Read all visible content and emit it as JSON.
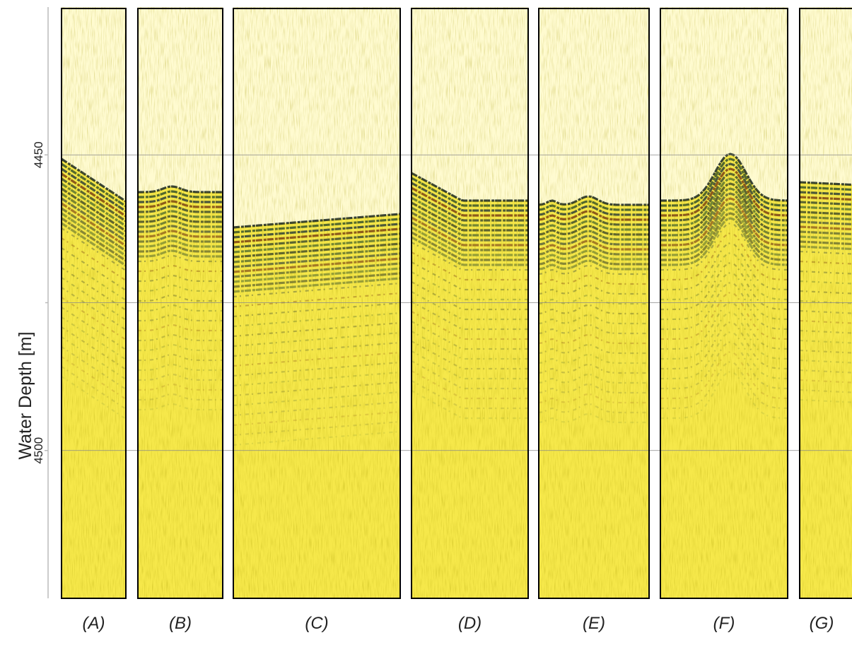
{
  "axis": {
    "label": "Water Depth [m]",
    "ylim": [
      4425,
      4525
    ],
    "yticks": [
      4450,
      4500
    ],
    "minor_yticks": [
      4475
    ],
    "inverted": true,
    "grid": true
  },
  "panels": [
    "(A)",
    "(B)",
    "(C)",
    "(D)",
    "(E)",
    "(F)",
    "(G)"
  ]
}
